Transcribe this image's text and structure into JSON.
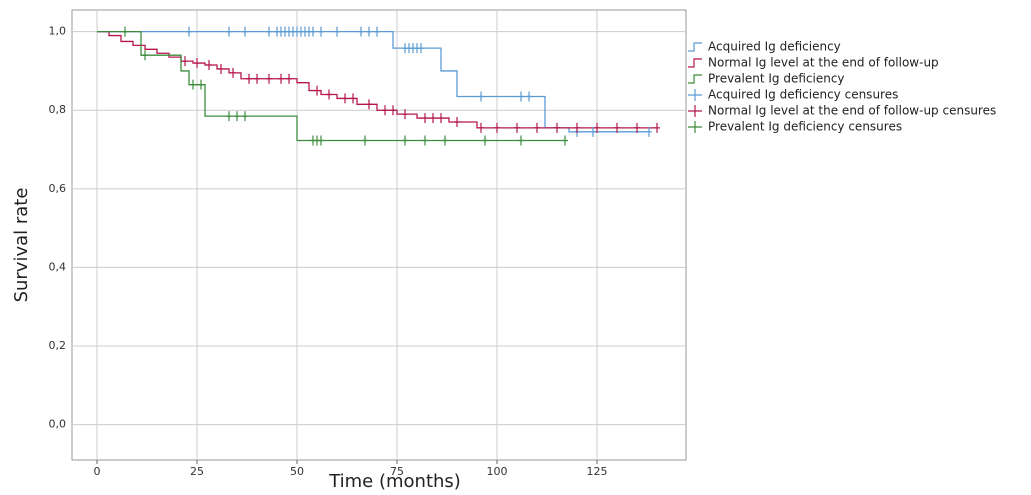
{
  "chart_data": {
    "type": "line",
    "step": true,
    "x_label": "Time (months)",
    "y_label": "Survival rate",
    "xlim": [
      -6.25,
      147.25
    ],
    "ylim": [
      -0.09,
      1.055
    ],
    "xticks": [
      0,
      25,
      50,
      75,
      100,
      125
    ],
    "yticks": [
      {
        "value": 0,
        "label": "0,0"
      },
      {
        "value": 0.2,
        "label": "0,2"
      },
      {
        "value": 0.4,
        "label": "0,4"
      },
      {
        "value": 0.6,
        "label": "0,6"
      },
      {
        "value": 0.8,
        "label": "0,8"
      },
      {
        "value": 1.0,
        "label": "1,0"
      }
    ],
    "grid": true,
    "legend": "right",
    "series": [
      {
        "name": "Acquired Ig deficiency",
        "color": "#5b9bd5",
        "style": "step",
        "x": [
          0,
          74,
          86,
          90,
          112,
          118,
          138
        ],
        "values": [
          1.0,
          0.958,
          0.9,
          0.835,
          0.755,
          0.745,
          0.745
        ]
      },
      {
        "name": "Normal Ig level at the end of follow-up",
        "color": "#b5174b",
        "style": "step",
        "x": [
          0,
          3,
          6,
          9,
          12,
          15,
          18,
          21,
          24,
          27,
          30,
          33,
          36,
          50,
          53,
          56,
          60,
          65,
          70,
          75,
          80,
          88,
          95,
          140
        ],
        "values": [
          1.0,
          0.99,
          0.975,
          0.965,
          0.955,
          0.945,
          0.935,
          0.925,
          0.92,
          0.915,
          0.905,
          0.895,
          0.88,
          0.87,
          0.85,
          0.84,
          0.83,
          0.815,
          0.8,
          0.79,
          0.78,
          0.77,
          0.755,
          0.755
        ]
      },
      {
        "name": "Prevalent Ig deficiency",
        "color": "#3d8b3d",
        "style": "step",
        "x": [
          0,
          11,
          21,
          23,
          27,
          50,
          117
        ],
        "values": [
          1.0,
          0.94,
          0.9,
          0.865,
          0.785,
          0.723,
          0.723
        ]
      },
      {
        "name": "Acquired Ig deficiency censures",
        "color": "#5b9bd5",
        "style": "censor",
        "x": [
          23,
          33,
          37,
          43,
          45,
          46,
          47,
          48,
          49,
          50,
          51,
          52,
          53,
          54,
          56,
          60,
          66,
          68,
          70,
          77,
          78,
          79,
          80,
          81,
          96,
          106,
          108,
          120,
          124,
          138
        ],
        "values": [
          1.0,
          1.0,
          1.0,
          1.0,
          1.0,
          1.0,
          1.0,
          1.0,
          1.0,
          1.0,
          1.0,
          1.0,
          1.0,
          1.0,
          1.0,
          1.0,
          1.0,
          1.0,
          1.0,
          0.958,
          0.958,
          0.958,
          0.958,
          0.958,
          0.835,
          0.835,
          0.835,
          0.745,
          0.745,
          0.745
        ]
      },
      {
        "name": "Normal Ig level at the end of follow-up censures",
        "color": "#b5174b",
        "style": "censor",
        "x": [
          22,
          25,
          28,
          31,
          34,
          38,
          40,
          43,
          46,
          48,
          55,
          58,
          62,
          64,
          68,
          72,
          74,
          77,
          82,
          84,
          86,
          90,
          96,
          100,
          105,
          110,
          115,
          120,
          125,
          130,
          135,
          140
        ],
        "values": [
          0.925,
          0.92,
          0.915,
          0.905,
          0.895,
          0.88,
          0.88,
          0.88,
          0.88,
          0.88,
          0.85,
          0.84,
          0.83,
          0.83,
          0.815,
          0.8,
          0.8,
          0.79,
          0.78,
          0.78,
          0.78,
          0.77,
          0.755,
          0.755,
          0.755,
          0.755,
          0.755,
          0.755,
          0.755,
          0.755,
          0.755,
          0.755
        ]
      },
      {
        "name": "Prevalent Ig deficiency censures",
        "color": "#3d8b3d",
        "style": "censor",
        "x": [
          7,
          12,
          24,
          26,
          33,
          35,
          37,
          54,
          55,
          56,
          67,
          77,
          82,
          87,
          97,
          106,
          117
        ],
        "values": [
          1.0,
          0.94,
          0.865,
          0.865,
          0.785,
          0.785,
          0.785,
          0.723,
          0.723,
          0.723,
          0.723,
          0.723,
          0.723,
          0.723,
          0.723,
          0.723,
          0.723
        ]
      }
    ]
  }
}
